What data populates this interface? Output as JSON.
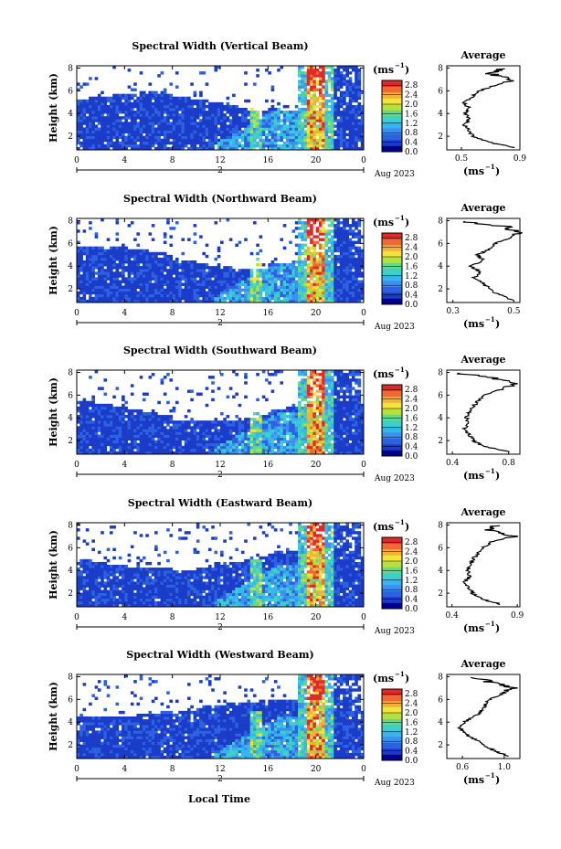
{
  "figure": {
    "xlabel": "Local Time",
    "date_label": "Aug 2023",
    "day_label": "2",
    "colorbar_unit": "(ms",
    "unit_exp": "−1",
    "avg_title": "Average",
    "avg_xlabel": "(ms",
    "colors": [
      "#00008c",
      "#1b3cc8",
      "#2c62e2",
      "#3d8ff0",
      "#36b6ee",
      "#3cd0c8",
      "#66d88a",
      "#b8e03a",
      "#f2e43a",
      "#f4b038",
      "#ee6a34",
      "#e02a2a"
    ],
    "colorbar_ticks": [
      "0.0",
      "0.4",
      "0.8",
      "1.2",
      "1.6",
      "2.0",
      "2.4",
      "2.8"
    ]
  },
  "chart_data": [
    {
      "type": "heatmap",
      "title": "Spectral Width (Vertical Beam)",
      "ylabel": "Height (km)",
      "x_ticks": [
        "0",
        "4",
        "8",
        "12",
        "16",
        "20",
        "0"
      ],
      "y_ticks": [
        "2",
        "4",
        "6",
        "8"
      ],
      "xlim": [
        0,
        24
      ],
      "ylim": [
        0.8,
        8.2
      ],
      "colorbar_range": [
        0,
        3.0
      ],
      "features": {
        "shallow_top_km": 5.1,
        "high_plume_hour": 20,
        "plume_top_km": 8.0
      },
      "average": {
        "xlim": [
          0.4,
          0.9
        ],
        "x_ticks": [
          "0.5",
          "0.9"
        ],
        "y_ticks": [
          "2",
          "4",
          "6",
          "8"
        ],
        "height": [
          1.0,
          1.5,
          2.0,
          2.5,
          3.0,
          3.5,
          4.0,
          4.5,
          5.0,
          5.5,
          6.0,
          6.5,
          7.0,
          7.5,
          8.0
        ],
        "values": [
          0.86,
          0.68,
          0.58,
          0.55,
          0.52,
          0.55,
          0.53,
          0.55,
          0.52,
          0.58,
          0.62,
          0.74,
          0.84,
          0.7,
          0.78
        ]
      }
    },
    {
      "type": "heatmap",
      "title": "Spectral Width (Northward Beam)",
      "ylabel": "Height (km)",
      "x_ticks": [
        "0",
        "4",
        "8",
        "12",
        "16",
        "20",
        "0"
      ],
      "y_ticks": [
        "2",
        "4",
        "6",
        "8"
      ],
      "xlim": [
        0,
        24
      ],
      "ylim": [
        0.8,
        8.2
      ],
      "colorbar_range": [
        0,
        3.0
      ],
      "features": {
        "shallow_top_km": 4.9,
        "high_plume_hour": 20,
        "plume_top_km": 7.4
      },
      "average": {
        "xlim": [
          0.28,
          0.52
        ],
        "x_ticks": [
          "0.3",
          "0.5"
        ],
        "y_ticks": [
          "2",
          "4",
          "6",
          "8"
        ],
        "height": [
          1.0,
          1.5,
          2.0,
          2.5,
          3.0,
          3.5,
          4.0,
          4.5,
          5.0,
          5.5,
          6.0,
          6.5,
          7.0,
          7.5,
          8.0
        ],
        "values": [
          0.5,
          0.45,
          0.42,
          0.4,
          0.37,
          0.39,
          0.36,
          0.4,
          0.38,
          0.42,
          0.44,
          0.49,
          0.51,
          0.47,
          0.3
        ]
      }
    },
    {
      "type": "heatmap",
      "title": "Spectral Width (Southward Beam)",
      "ylabel": "Height (km)",
      "x_ticks": [
        "0",
        "4",
        "8",
        "12",
        "16",
        "20",
        "0"
      ],
      "y_ticks": [
        "2",
        "4",
        "6",
        "8"
      ],
      "xlim": [
        0,
        24
      ],
      "ylim": [
        0.8,
        8.2
      ],
      "colorbar_range": [
        0,
        3.0
      ],
      "features": {
        "shallow_top_km": 4.8,
        "high_plume_hour": 20,
        "plume_top_km": 7.8
      },
      "average": {
        "xlim": [
          0.36,
          0.88
        ],
        "x_ticks": [
          "0.4",
          "0.8"
        ],
        "y_ticks": [
          "2",
          "4",
          "6",
          "8"
        ],
        "height": [
          1.0,
          1.5,
          2.0,
          2.5,
          3.0,
          3.5,
          4.0,
          4.5,
          5.0,
          5.5,
          6.0,
          6.5,
          7.0,
          7.5,
          8.0
        ],
        "values": [
          0.8,
          0.62,
          0.55,
          0.52,
          0.48,
          0.52,
          0.5,
          0.52,
          0.55,
          0.58,
          0.62,
          0.75,
          0.82,
          0.7,
          0.4
        ]
      }
    },
    {
      "type": "heatmap",
      "title": "Spectral Width (Eastward Beam)",
      "ylabel": "Height (km)",
      "x_ticks": [
        "0",
        "4",
        "8",
        "12",
        "16",
        "20",
        "0"
      ],
      "y_ticks": [
        "2",
        "4",
        "6",
        "8"
      ],
      "xlim": [
        0,
        24
      ],
      "ylim": [
        0.8,
        8.2
      ],
      "colorbar_range": [
        0,
        3.0
      ],
      "features": {
        "shallow_top_km": 5.0,
        "high_plume_hour": 20,
        "plume_top_km": 7.6
      },
      "average": {
        "xlim": [
          0.36,
          0.92
        ],
        "x_ticks": [
          "0.4",
          "0.9"
        ],
        "y_ticks": [
          "2",
          "4",
          "6",
          "8"
        ],
        "height": [
          1.0,
          1.5,
          2.0,
          2.5,
          3.0,
          3.5,
          4.0,
          4.5,
          5.0,
          5.5,
          6.0,
          6.5,
          7.0,
          7.5,
          8.0
        ],
        "values": [
          0.78,
          0.62,
          0.56,
          0.53,
          0.5,
          0.54,
          0.52,
          0.55,
          0.56,
          0.6,
          0.64,
          0.7,
          0.86,
          0.68,
          0.74
        ]
      }
    },
    {
      "type": "heatmap",
      "title": "Spectral Width (Westward Beam)",
      "ylabel": "Height (km)",
      "x_ticks": [
        "0",
        "4",
        "8",
        "12",
        "16",
        "20",
        "0"
      ],
      "y_ticks": [
        "2",
        "4",
        "6",
        "8"
      ],
      "xlim": [
        0,
        24
      ],
      "ylim": [
        0.8,
        8.2
      ],
      "colorbar_range": [
        0,
        3.0
      ],
      "features": {
        "shallow_top_km": 5.3,
        "high_plume_hour": 20,
        "plume_top_km": 8.2
      },
      "average": {
        "xlim": [
          0.45,
          1.15
        ],
        "x_ticks": [
          "0.6",
          "1.0"
        ],
        "y_ticks": [
          "2",
          "4",
          "6",
          "8"
        ],
        "height": [
          1.0,
          1.5,
          2.0,
          2.5,
          3.0,
          3.5,
          4.0,
          4.5,
          5.0,
          5.5,
          6.0,
          6.5,
          7.0,
          7.5,
          8.0
        ],
        "values": [
          1.05,
          0.9,
          0.8,
          0.72,
          0.62,
          0.58,
          0.62,
          0.72,
          0.78,
          0.82,
          0.86,
          0.98,
          1.08,
          0.88,
          0.7
        ]
      }
    }
  ]
}
